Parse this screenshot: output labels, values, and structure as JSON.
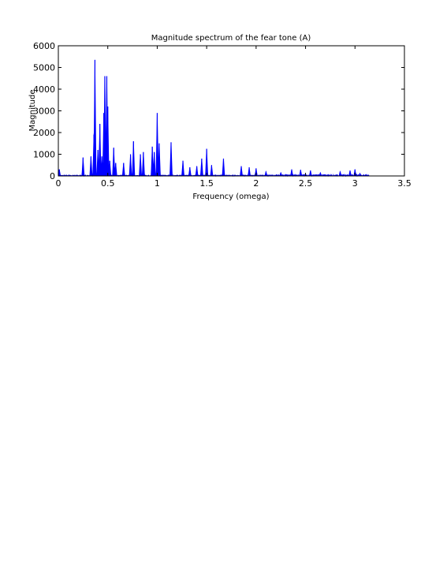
{
  "chart_data": {
    "type": "area",
    "title": "Magnitude spectrum of the fear tone (A)",
    "xlabel": "Frequency (omega)",
    "ylabel": "Magnitude",
    "xlim": [
      0,
      3.5
    ],
    "ylim": [
      0,
      6000
    ],
    "xticks": [
      0,
      0.5,
      1,
      1.5,
      2,
      2.5,
      3,
      3.5
    ],
    "xtick_labels": [
      "0",
      "0.5",
      "1",
      "1.5",
      "2",
      "2.5",
      "3",
      "3.5"
    ],
    "yticks": [
      0,
      1000,
      2000,
      3000,
      4000,
      5000,
      6000
    ],
    "ytick_labels": [
      "0",
      "1000",
      "2000",
      "3000",
      "4000",
      "5000",
      "6000"
    ],
    "grid": false,
    "legend": "none",
    "series_color": "#0000ff",
    "x_max_data": 3.14,
    "peaks": [
      {
        "x": 0.01,
        "y": 300
      },
      {
        "x": 0.25,
        "y": 850
      },
      {
        "x": 0.33,
        "y": 900
      },
      {
        "x": 0.36,
        "y": 1900
      },
      {
        "x": 0.37,
        "y": 5350
      },
      {
        "x": 0.4,
        "y": 1200
      },
      {
        "x": 0.42,
        "y": 2400
      },
      {
        "x": 0.44,
        "y": 900
      },
      {
        "x": 0.46,
        "y": 2900
      },
      {
        "x": 0.47,
        "y": 4600
      },
      {
        "x": 0.49,
        "y": 4600
      },
      {
        "x": 0.5,
        "y": 3200
      },
      {
        "x": 0.52,
        "y": 700
      },
      {
        "x": 0.56,
        "y": 1300
      },
      {
        "x": 0.58,
        "y": 600
      },
      {
        "x": 0.66,
        "y": 600
      },
      {
        "x": 0.73,
        "y": 1000
      },
      {
        "x": 0.76,
        "y": 1600
      },
      {
        "x": 0.83,
        "y": 1000
      },
      {
        "x": 0.86,
        "y": 1100
      },
      {
        "x": 0.95,
        "y": 1350
      },
      {
        "x": 0.97,
        "y": 1100
      },
      {
        "x": 1.0,
        "y": 2900
      },
      {
        "x": 1.02,
        "y": 1500
      },
      {
        "x": 1.14,
        "y": 1550
      },
      {
        "x": 1.26,
        "y": 700
      },
      {
        "x": 1.33,
        "y": 400
      },
      {
        "x": 1.4,
        "y": 450
      },
      {
        "x": 1.45,
        "y": 800
      },
      {
        "x": 1.5,
        "y": 1250
      },
      {
        "x": 1.55,
        "y": 500
      },
      {
        "x": 1.67,
        "y": 800
      },
      {
        "x": 1.85,
        "y": 450
      },
      {
        "x": 1.93,
        "y": 400
      },
      {
        "x": 2.0,
        "y": 350
      },
      {
        "x": 2.1,
        "y": 200
      },
      {
        "x": 2.25,
        "y": 150
      },
      {
        "x": 2.36,
        "y": 300
      },
      {
        "x": 2.45,
        "y": 280
      },
      {
        "x": 2.55,
        "y": 250
      },
      {
        "x": 2.65,
        "y": 150
      },
      {
        "x": 2.85,
        "y": 200
      },
      {
        "x": 2.95,
        "y": 250
      },
      {
        "x": 3.0,
        "y": 300
      },
      {
        "x": 3.05,
        "y": 120
      }
    ]
  }
}
